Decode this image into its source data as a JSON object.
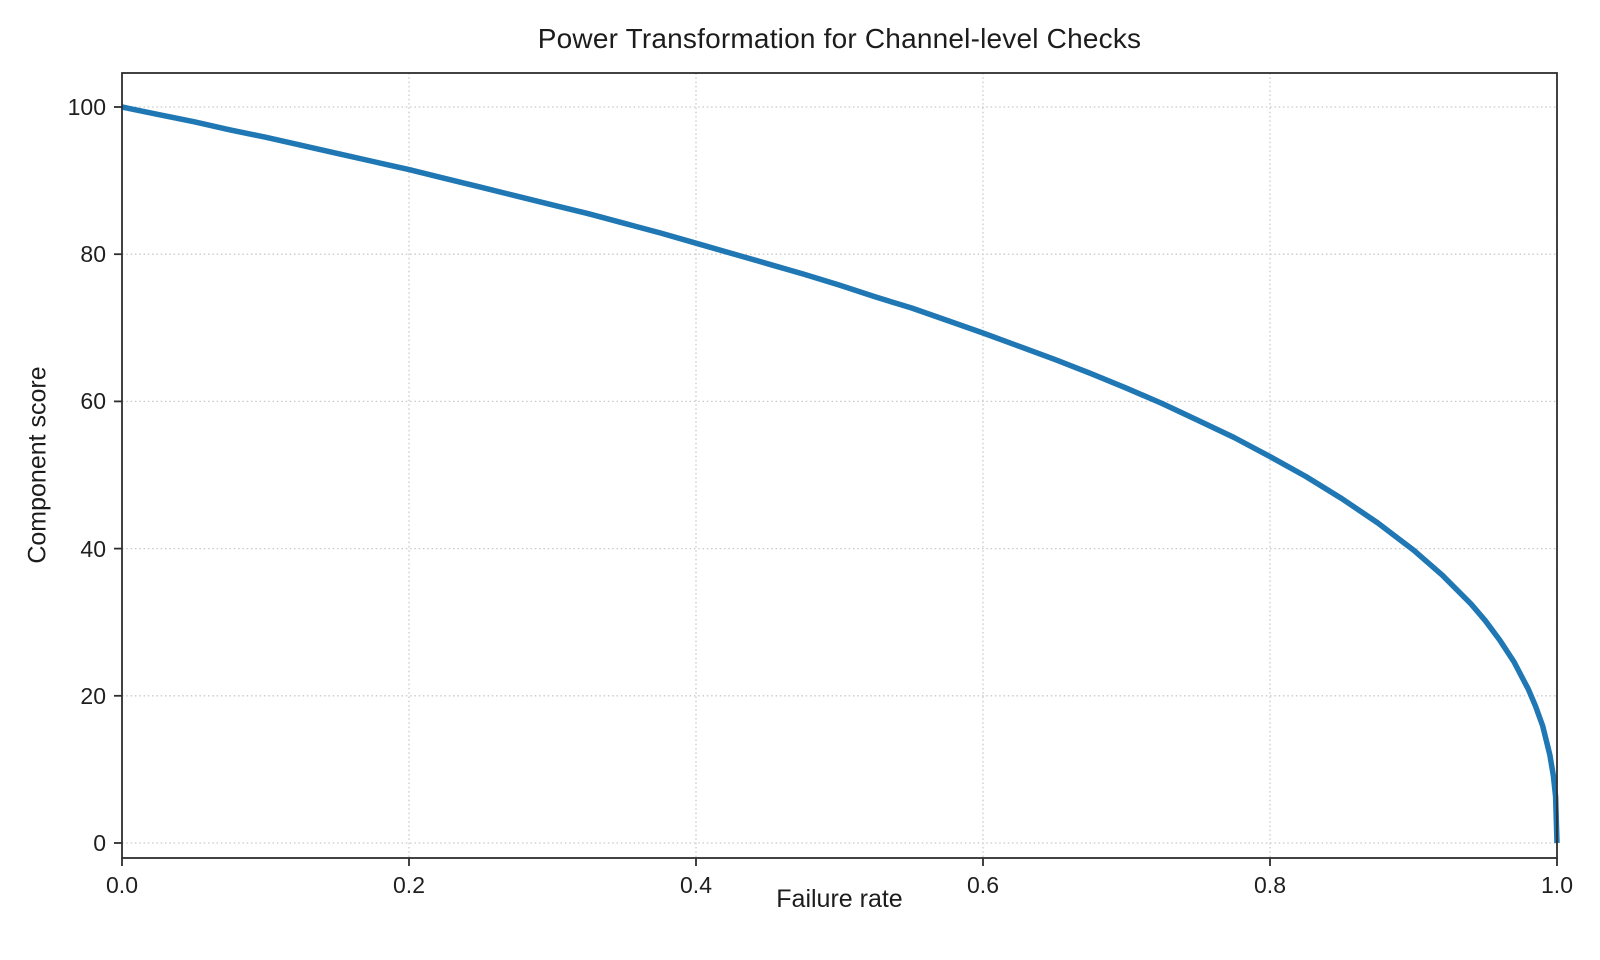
{
  "chart_data": {
    "type": "line",
    "title": "Power Transformation for Channel-level Checks",
    "xlabel": "Failure rate",
    "ylabel": "Component score",
    "x_ticks": [
      "0.0",
      "0.2",
      "0.4",
      "0.6",
      "0.8",
      "1.0"
    ],
    "x_tick_values": [
      0,
      0.2,
      0.4,
      0.6,
      0.8,
      1.0
    ],
    "y_ticks": [
      "0",
      "20",
      "40",
      "60",
      "80",
      "100"
    ],
    "y_tick_values": [
      0,
      20,
      40,
      60,
      80,
      100
    ],
    "xlim": [
      0,
      1
    ],
    "ylim": [
      0,
      100
    ],
    "grid": "dotted, both axes",
    "legend": "none",
    "formula": "score = 100 * (1 - failure_rate)^0.4",
    "series": [
      {
        "name": "Component score",
        "color": "#1f77b4",
        "line_width": 5.5,
        "x": [
          0,
          0.025,
          0.05,
          0.075,
          0.1,
          0.125,
          0.15,
          0.175,
          0.2,
          0.225,
          0.25,
          0.275,
          0.3,
          0.325,
          0.35,
          0.375,
          0.4,
          0.425,
          0.45,
          0.475,
          0.5,
          0.525,
          0.55,
          0.575,
          0.6,
          0.625,
          0.65,
          0.675,
          0.7,
          0.725,
          0.75,
          0.775,
          0.8,
          0.825,
          0.85,
          0.875,
          0.9,
          0.92,
          0.94,
          0.95,
          0.96,
          0.97,
          0.98,
          0.985,
          0.99,
          0.995,
          0.9975,
          0.999,
          1.0
        ],
        "y": [
          100,
          99.0,
          98.0,
          96.9,
          95.9,
          94.8,
          93.7,
          92.6,
          91.5,
          90.3,
          89.1,
          87.9,
          86.7,
          85.5,
          84.2,
          82.9,
          81.5,
          80.1,
          78.7,
          77.3,
          75.8,
          74.2,
          72.7,
          71.0,
          69.3,
          67.5,
          65.7,
          63.8,
          61.8,
          59.7,
          57.4,
          55.1,
          52.5,
          49.8,
          46.8,
          43.5,
          39.8,
          36.4,
          32.5,
          30.2,
          27.6,
          24.6,
          20.9,
          18.6,
          15.9,
          12.0,
          9.1,
          6.3,
          0
        ]
      }
    ]
  },
  "colors": {
    "background": "#ffffff",
    "line": "#1f77b4",
    "grid": "#c9c9c9",
    "spine": "#2e2e2e",
    "text": "#1f1f1f"
  }
}
